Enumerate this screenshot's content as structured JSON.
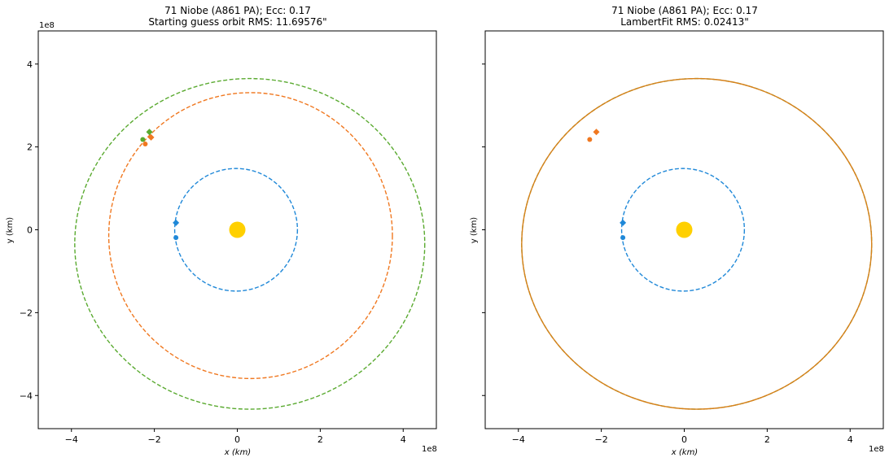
{
  "chart_data": [
    {
      "type": "line",
      "title": "71 Niobe (A861 PA); Ecc: 0.17",
      "subtitle": "Starting guess orbit RMS: 11.69576\"",
      "xlabel": "x (km)",
      "ylabel": "y (km)",
      "x_offset_label": "1e8",
      "y_offset_label": "1e8",
      "xlim": [
        -4.8,
        4.8
      ],
      "ylim": [
        -4.8,
        4.8
      ],
      "xticks": [
        -4,
        -2,
        0,
        2,
        4
      ],
      "yticks": [
        -4,
        -2,
        0,
        2,
        4
      ],
      "xtick_labels": [
        "−4",
        "−2",
        "0",
        "2",
        "4"
      ],
      "ytick_labels": [
        "−4",
        "−2",
        "0",
        "2",
        "4"
      ],
      "show_ytick_labels": true,
      "grid": false,
      "sun": {
        "x": 0,
        "y": 0,
        "color": "#FFD000"
      },
      "orbits": [
        {
          "cx": -0.03,
          "cy": 0.0,
          "a": 1.48,
          "b": 1.48,
          "color": "#1f88d8",
          "style": "dashed",
          "closed": true
        },
        {
          "cx": 0.32,
          "cy": -0.14,
          "a": 3.42,
          "b": 3.45,
          "color": "#f07820",
          "style": "dashed",
          "closed": true
        },
        {
          "cx": 0.3,
          "cy": -0.34,
          "a": 4.22,
          "b": 3.99,
          "color": "#5aaa30",
          "style": "dashed",
          "closed": true
        }
      ],
      "points": [
        {
          "x": -1.48,
          "y": 0.17,
          "color": "#1f88d8",
          "marker": "diamond"
        },
        {
          "x": -1.48,
          "y": -0.19,
          "color": "#1f88d8",
          "marker": "circle"
        },
        {
          "x": -2.08,
          "y": 2.23,
          "color": "#f07820",
          "marker": "diamond"
        },
        {
          "x": -2.22,
          "y": 2.07,
          "color": "#f07820",
          "marker": "circle"
        },
        {
          "x": -2.12,
          "y": 2.36,
          "color": "#5aaa30",
          "marker": "diamond"
        },
        {
          "x": -2.28,
          "y": 2.18,
          "color": "#5aaa30",
          "marker": "circle"
        }
      ]
    },
    {
      "type": "line",
      "title": "71 Niobe (A861 PA); Ecc: 0.17",
      "subtitle": "LambertFit RMS: 0.02413\"",
      "xlabel": "x (km)",
      "ylabel": "y (km)",
      "x_offset_label": "1e8",
      "y_offset_label": "",
      "xlim": [
        -4.8,
        4.8
      ],
      "ylim": [
        -4.8,
        4.8
      ],
      "xticks": [
        -4,
        -2,
        0,
        2,
        4
      ],
      "yticks": [
        -4,
        -2,
        0,
        2,
        4
      ],
      "xtick_labels": [
        "−4",
        "−2",
        "0",
        "2",
        "4"
      ],
      "ytick_labels": [],
      "show_ytick_labels": false,
      "grid": false,
      "sun": {
        "x": 0,
        "y": 0,
        "color": "#FFD000"
      },
      "orbits": [
        {
          "cx": -0.03,
          "cy": 0.0,
          "a": 1.48,
          "b": 1.48,
          "color": "#1f88d8",
          "style": "dashed",
          "closed": true
        },
        {
          "cx": 0.3,
          "cy": -0.34,
          "a": 4.22,
          "b": 3.99,
          "color": "#5aaa30",
          "style": "dashed",
          "closed": true
        },
        {
          "cx": 0.3,
          "cy": -0.34,
          "a": 4.22,
          "b": 3.99,
          "color": "#d8801a",
          "style": "solid",
          "closed": true
        }
      ],
      "points": [
        {
          "x": -1.48,
          "y": 0.17,
          "color": "#1f88d8",
          "marker": "diamond"
        },
        {
          "x": -1.48,
          "y": -0.19,
          "color": "#1f88d8",
          "marker": "circle"
        },
        {
          "x": -2.12,
          "y": 2.36,
          "color": "#f07820",
          "marker": "diamond"
        },
        {
          "x": -2.28,
          "y": 2.18,
          "color": "#f07820",
          "marker": "circle"
        }
      ]
    }
  ]
}
